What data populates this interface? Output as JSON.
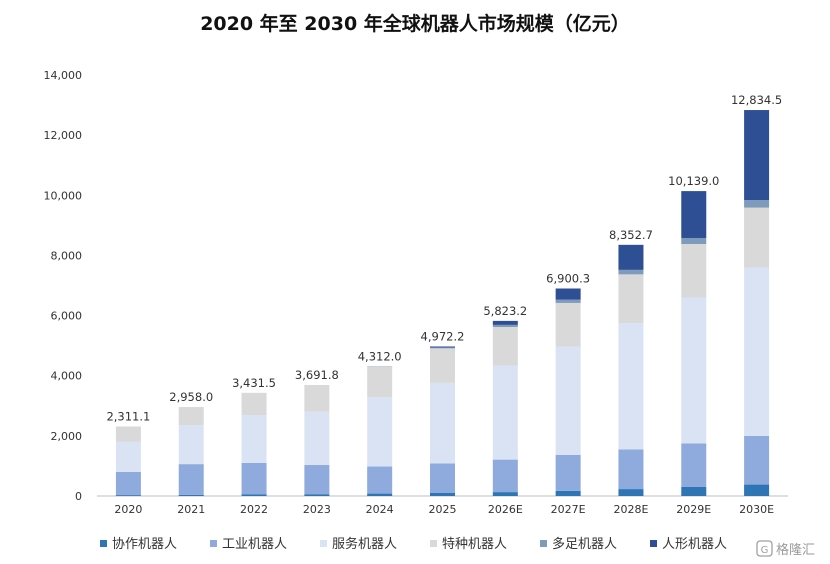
{
  "chart_data": {
    "type": "bar",
    "stacked": true,
    "title": "2020 年至 2030 年全球机器人市场规模（亿元）",
    "xlabel": "",
    "ylabel": "",
    "ylim": [
      0,
      14000
    ],
    "yticks": [
      0,
      2000,
      4000,
      6000,
      8000,
      10000,
      12000,
      14000
    ],
    "ytick_labels": [
      "0",
      "2,000",
      "4,000",
      "6,000",
      "8,000",
      "10,000",
      "12,000",
      "14,000"
    ],
    "grid": false,
    "legend_position": "bottom",
    "categories": [
      "2020",
      "2021",
      "2022",
      "2023",
      "2024",
      "2025",
      "2026E",
      "2027E",
      "2028E",
      "2029E",
      "2030E"
    ],
    "totals": [
      2311.1,
      2958.0,
      3431.5,
      3691.8,
      4312.0,
      4972.2,
      5823.2,
      6900.3,
      8352.7,
      10139.0,
      12834.5
    ],
    "total_labels": [
      "2,311.1",
      "2,958.0",
      "3,431.5",
      "3,691.8",
      "4,312.0",
      "4,972.2",
      "5,823.2",
      "6,900.3",
      "8,352.7",
      "10,139.0",
      "12,834.5"
    ],
    "series": [
      {
        "name": "协作机器人",
        "color": "#2e75b6",
        "values": [
          30,
          40,
          50,
          60,
          80,
          100,
          130,
          170,
          230,
          300,
          380
        ]
      },
      {
        "name": "工业机器人",
        "color": "#8faadc",
        "values": [
          770,
          1020,
          1050,
          970,
          900,
          980,
          1080,
          1200,
          1320,
          1450,
          1620
        ]
      },
      {
        "name": "服务机器人",
        "color": "#dae3f3",
        "values": [
          1000,
          1300,
          1590,
          1770,
          2300,
          2680,
          3130,
          3600,
          4200,
          4850,
          5600
        ]
      },
      {
        "name": "特种机器人",
        "color": "#d9d9d9",
        "values": [
          511.1,
          598,
          741.5,
          891.8,
          1020,
          1150,
          1280,
          1450,
          1620,
          1780,
          1990
        ]
      },
      {
        "name": "多足机器人",
        "color": "#7f9bbc",
        "values": [
          0,
          0,
          0,
          0,
          12,
          30,
          70,
          110,
          150,
          200,
          250
        ]
      },
      {
        "name": "人形机器人",
        "color": "#2f4f94",
        "values": [
          0,
          0,
          0,
          0,
          0,
          32.2,
          133.2,
          370.3,
          832.7,
          1559,
          2994.5
        ]
      }
    ]
  },
  "watermark": "格隆汇"
}
